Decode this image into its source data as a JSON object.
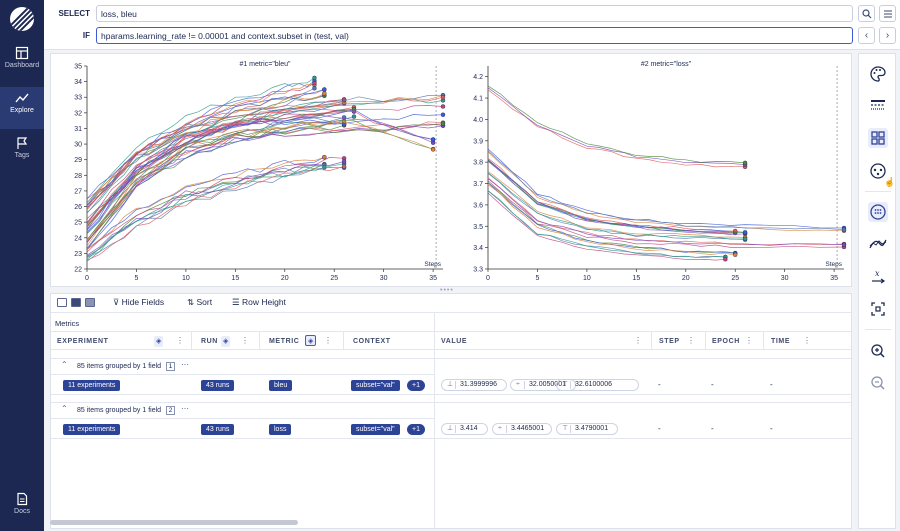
{
  "sidebar": {
    "items": [
      {
        "label": "Dashboard",
        "icon": "dashboard-icon"
      },
      {
        "label": "Explore",
        "icon": "explore-icon",
        "active": true
      },
      {
        "label": "Tags",
        "icon": "flag-icon"
      }
    ],
    "docs_label": "Docs"
  },
  "query": {
    "select_label": "SELECT",
    "select_value": "loss, bleu",
    "if_label": "IF",
    "if_value": "hparams.learning_rate != 0.00001 and context.subset in (test, val)"
  },
  "charts": [
    {
      "title": "#1 metric=\"bleu\"",
      "x_label": "Steps",
      "y_ticks": [
        "35",
        "34",
        "33",
        "32",
        "31",
        "30",
        "29",
        "28",
        "27",
        "26",
        "25",
        "24",
        "23",
        "22"
      ],
      "x_ticks": [
        "0",
        "5",
        "10",
        "15",
        "20",
        "25",
        "30",
        "35"
      ]
    },
    {
      "title": "#2 metric=\"loss\"",
      "x_label": "Steps",
      "y_ticks": [
        "4.2",
        "4.1",
        "4.0",
        "3.9",
        "3.8",
        "3.7",
        "3.6",
        "3.5",
        "3.4",
        "3.3"
      ],
      "x_ticks": [
        "0",
        "5",
        "10",
        "15",
        "20",
        "25",
        "30",
        "35"
      ]
    }
  ],
  "chart_data": [
    {
      "type": "line",
      "title": "#1 metric=\"bleu\"",
      "xlabel": "Steps",
      "ylabel": "",
      "xlim": [
        0,
        36
      ],
      "ylim": [
        22,
        35
      ],
      "series_count": 43,
      "series": [
        {
          "values": [
            [
              0,
              26.5
            ],
            [
              5,
              29.5
            ],
            [
              10,
              31.0
            ],
            [
              15,
              32.2
            ],
            [
              20,
              33.0
            ],
            [
              24,
              33.5
            ]
          ]
        },
        {
          "values": [
            [
              0,
              25.0
            ],
            [
              5,
              28.5
            ],
            [
              10,
              30.5
            ],
            [
              15,
              31.5
            ],
            [
              20,
              32.3
            ],
            [
              26,
              32.9
            ]
          ]
        },
        {
          "values": [
            [
              0,
              24.5
            ],
            [
              5,
              28.0
            ],
            [
              10,
              30.0
            ],
            [
              15,
              31.0
            ],
            [
              20,
              31.6
            ],
            [
              27,
              32.0
            ]
          ]
        },
        {
          "values": [
            [
              0,
              23.5
            ],
            [
              5,
              27.5
            ],
            [
              10,
              29.5
            ],
            [
              15,
              30.5
            ],
            [
              20,
              31.2
            ],
            [
              26,
              31.5
            ]
          ]
        },
        {
          "values": [
            [
              0,
              25.5
            ],
            [
              5,
              29.0
            ],
            [
              10,
              30.7
            ],
            [
              15,
              31.6
            ],
            [
              20,
              32.0
            ],
            [
              30,
              32.5
            ],
            [
              36,
              32.7
            ]
          ]
        },
        {
          "values": [
            [
              0,
              24.0
            ],
            [
              5,
              27.8
            ],
            [
              10,
              29.8
            ],
            [
              15,
              30.7
            ],
            [
              20,
              31.0
            ],
            [
              30,
              31.2
            ],
            [
              36,
              31.5
            ]
          ]
        },
        {
          "values": [
            [
              0,
              23.0
            ],
            [
              5,
              25.5
            ],
            [
              10,
              27.0
            ],
            [
              15,
              27.8
            ],
            [
              20,
              28.5
            ],
            [
              24,
              28.9
            ]
          ]
        },
        {
          "values": [
            [
              0,
              22.8
            ],
            [
              5,
              25.0
            ],
            [
              10,
              26.5
            ],
            [
              15,
              27.5
            ],
            [
              20,
              28.2
            ],
            [
              26,
              28.8
            ]
          ]
        },
        {
          "values": [
            [
              0,
              24.2
            ],
            [
              5,
              28.2
            ],
            [
              10,
              30.2
            ],
            [
              15,
              31.0
            ],
            [
              20,
              31.4
            ],
            [
              27,
              31.7
            ],
            [
              35,
              30.0
            ]
          ]
        },
        {
          "values": [
            [
              0,
              25.8
            ],
            [
              5,
              29.3
            ],
            [
              10,
              31.2
            ],
            [
              15,
              32.5
            ],
            [
              20,
              33.3
            ],
            [
              23,
              33.8
            ]
          ]
        }
      ]
    },
    {
      "type": "line",
      "title": "#2 metric=\"loss\"",
      "xlabel": "Steps",
      "ylabel": "",
      "xlim": [
        0,
        36
      ],
      "ylim": [
        3.3,
        4.25
      ],
      "series_count": 43,
      "series": [
        {
          "values": [
            [
              0,
              4.15
            ],
            [
              5,
              3.98
            ],
            [
              10,
              3.88
            ],
            [
              15,
              3.83
            ],
            [
              20,
              3.8
            ],
            [
              26,
              3.79
            ]
          ]
        },
        {
          "values": [
            [
              0,
              3.85
            ],
            [
              5,
              3.64
            ],
            [
              10,
              3.56
            ],
            [
              15,
              3.52
            ],
            [
              20,
              3.5
            ],
            [
              26,
              3.49
            ],
            [
              36,
              3.48
            ]
          ]
        },
        {
          "values": [
            [
              0,
              3.82
            ],
            [
              5,
              3.62
            ],
            [
              10,
              3.54
            ],
            [
              15,
              3.51
            ],
            [
              20,
              3.49
            ],
            [
              25,
              3.48
            ]
          ]
        },
        {
          "values": [
            [
              0,
              3.8
            ],
            [
              5,
              3.6
            ],
            [
              10,
              3.52
            ],
            [
              15,
              3.49
            ],
            [
              20,
              3.47
            ],
            [
              26,
              3.46
            ]
          ]
        },
        {
          "values": [
            [
              0,
              3.75
            ],
            [
              5,
              3.56
            ],
            [
              10,
              3.49
            ],
            [
              15,
              3.46
            ],
            [
              20,
              3.45
            ],
            [
              26,
              3.44
            ]
          ]
        },
        {
          "values": [
            [
              0,
              3.72
            ],
            [
              5,
              3.52
            ],
            [
              10,
              3.46
            ],
            [
              15,
              3.43
            ],
            [
              20,
              3.42
            ],
            [
              26,
              3.41
            ],
            [
              36,
              3.41
            ]
          ]
        },
        {
          "values": [
            [
              0,
              3.7
            ],
            [
              5,
              3.5
            ],
            [
              10,
              3.43
            ],
            [
              15,
              3.4
            ],
            [
              20,
              3.38
            ],
            [
              25,
              3.37
            ]
          ]
        },
        {
          "values": [
            [
              0,
              3.66
            ],
            [
              5,
              3.46
            ],
            [
              10,
              3.4
            ],
            [
              15,
              3.37
            ],
            [
              20,
              3.35
            ],
            [
              24,
              3.35
            ]
          ]
        }
      ]
    }
  ],
  "table": {
    "toolbar": {
      "hide_fields": "Hide Fields",
      "sort": "Sort",
      "row_height": "Row Height"
    },
    "section_label": "Metrics",
    "headers": {
      "experiment": "EXPERIMENT",
      "run": "RUN",
      "metric": "METRIC",
      "context": "CONTEXT",
      "value": "VALUE",
      "step": "STEP",
      "epoch": "EPOCH",
      "time": "TIME"
    },
    "groups": [
      {
        "summary": "85 items grouped by 1 field",
        "index": "1",
        "experiments": "11 experiments",
        "runs": "43 runs",
        "metric": "bleu",
        "context": "subset=\"val\"",
        "context_more": "+1",
        "min": "31.3999996",
        "mean": "32.0050001",
        "max": "32.6100006",
        "step": "-",
        "epoch": "-",
        "time": "-"
      },
      {
        "summary": "85 items grouped by 1 field",
        "index": "2",
        "experiments": "11 experiments",
        "runs": "43 runs",
        "metric": "loss",
        "context": "subset=\"val\"",
        "context_more": "+1",
        "min": "3.414",
        "mean": "3.4465001",
        "max": "3.4790001",
        "step": "-",
        "epoch": "-",
        "time": "-"
      }
    ]
  },
  "colors": {
    "navy": "#1c2852",
    "accent": "#2d4396",
    "lines": [
      "#e05a5a",
      "#3d5bd8",
      "#2b9a8a",
      "#7a4bbd",
      "#d9823b",
      "#c0437a",
      "#4a8a3a",
      "#5577aa"
    ]
  },
  "right_toolbar_icons": [
    "palette-icon",
    "stroke-style-icon",
    "grouping-icon",
    "chart-groups-icon",
    "aggregate-icon",
    "smoothing-icon",
    "x-axis-icon",
    "zoom-fit-icon",
    "zoom-in-icon",
    "zoom-out-icon"
  ]
}
